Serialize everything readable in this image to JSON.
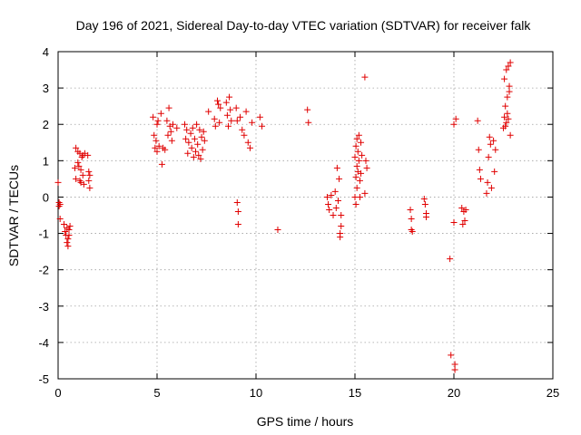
{
  "chart_data": {
    "type": "scatter",
    "title": "Day 196 of 2021, Sidereal Day-to-day VTEC variation (SDTVAR) for receiver falk",
    "xlabel": "GPS time / hours",
    "ylabel": "SDTVAR / TECUs",
    "xlim": [
      0,
      25
    ],
    "ylim": [
      -5,
      4
    ],
    "xticks": [
      "0",
      "5",
      "10",
      "15",
      "20",
      "25"
    ],
    "yticks": [
      "-5",
      "-4",
      "-3",
      "-2",
      "-1",
      "0",
      "1",
      "2",
      "3",
      "4"
    ],
    "grid": true,
    "marker": "+",
    "color": "#e00000",
    "series": [
      {
        "name": "falk",
        "points": [
          [
            0.0,
            0.4
          ],
          [
            0.05,
            -0.15
          ],
          [
            0.05,
            -0.25
          ],
          [
            0.1,
            -0.2
          ],
          [
            0.1,
            -0.6
          ],
          [
            0.3,
            -0.75
          ],
          [
            0.35,
            -0.95
          ],
          [
            0.4,
            -1.05
          ],
          [
            0.45,
            -0.85
          ],
          [
            0.45,
            -1.25
          ],
          [
            0.5,
            -1.15
          ],
          [
            0.5,
            -1.35
          ],
          [
            0.55,
            -0.9
          ],
          [
            0.55,
            -1.05
          ],
          [
            0.6,
            -0.8
          ],
          [
            0.85,
            0.8
          ],
          [
            0.9,
            1.35
          ],
          [
            0.9,
            0.5
          ],
          [
            1.0,
            1.25
          ],
          [
            1.0,
            0.95
          ],
          [
            1.05,
            0.85
          ],
          [
            1.1,
            1.2
          ],
          [
            1.1,
            0.45
          ],
          [
            1.15,
            0.75
          ],
          [
            1.15,
            0.4
          ],
          [
            1.2,
            1.1
          ],
          [
            1.25,
            1.15
          ],
          [
            1.25,
            0.6
          ],
          [
            1.3,
            0.35
          ],
          [
            1.35,
            1.2
          ],
          [
            1.5,
            1.15
          ],
          [
            1.55,
            0.7
          ],
          [
            1.55,
            0.45
          ],
          [
            1.6,
            0.6
          ],
          [
            1.6,
            0.25
          ],
          [
            4.8,
            2.2
          ],
          [
            4.85,
            1.7
          ],
          [
            4.9,
            1.35
          ],
          [
            4.95,
            1.55
          ],
          [
            5.0,
            2.0
          ],
          [
            5.0,
            1.25
          ],
          [
            5.05,
            2.1
          ],
          [
            5.1,
            1.4
          ],
          [
            5.2,
            2.3
          ],
          [
            5.25,
            0.9
          ],
          [
            5.3,
            1.35
          ],
          [
            5.4,
            1.3
          ],
          [
            5.5,
            2.1
          ],
          [
            5.55,
            1.7
          ],
          [
            5.6,
            2.45
          ],
          [
            5.65,
            1.95
          ],
          [
            5.7,
            1.8
          ],
          [
            5.75,
            1.55
          ],
          [
            5.8,
            2.0
          ],
          [
            6.0,
            1.9
          ],
          [
            6.4,
            2.0
          ],
          [
            6.45,
            1.6
          ],
          [
            6.5,
            1.85
          ],
          [
            6.55,
            1.2
          ],
          [
            6.6,
            1.5
          ],
          [
            6.7,
            1.75
          ],
          [
            6.75,
            1.35
          ],
          [
            6.8,
            1.9
          ],
          [
            6.85,
            1.1
          ],
          [
            6.9,
            1.6
          ],
          [
            6.95,
            1.25
          ],
          [
            7.0,
            2.0
          ],
          [
            7.05,
            1.45
          ],
          [
            7.1,
            1.15
          ],
          [
            7.15,
            1.85
          ],
          [
            7.2,
            1.05
          ],
          [
            7.25,
            1.65
          ],
          [
            7.3,
            1.3
          ],
          [
            7.35,
            1.8
          ],
          [
            7.4,
            1.55
          ],
          [
            7.6,
            2.35
          ],
          [
            7.9,
            2.15
          ],
          [
            7.95,
            1.95
          ],
          [
            8.05,
            2.65
          ],
          [
            8.1,
            2.55
          ],
          [
            8.15,
            2.05
          ],
          [
            8.2,
            2.45
          ],
          [
            8.5,
            2.6
          ],
          [
            8.55,
            2.25
          ],
          [
            8.6,
            1.95
          ],
          [
            8.65,
            2.75
          ],
          [
            8.7,
            2.4
          ],
          [
            8.75,
            2.1
          ],
          [
            9.0,
            2.45
          ],
          [
            9.05,
            2.1
          ],
          [
            9.05,
            -0.15
          ],
          [
            9.1,
            -0.4
          ],
          [
            9.1,
            -0.75
          ],
          [
            9.2,
            2.2
          ],
          [
            9.3,
            1.85
          ],
          [
            9.4,
            1.7
          ],
          [
            9.5,
            2.35
          ],
          [
            9.6,
            1.5
          ],
          [
            9.7,
            1.35
          ],
          [
            9.8,
            2.05
          ],
          [
            10.2,
            2.2
          ],
          [
            10.3,
            1.95
          ],
          [
            11.1,
            -0.9
          ],
          [
            12.6,
            2.4
          ],
          [
            12.65,
            2.05
          ],
          [
            13.6,
            0.0
          ],
          [
            13.65,
            -0.2
          ],
          [
            13.7,
            -0.35
          ],
          [
            13.8,
            0.05
          ],
          [
            13.9,
            -0.5
          ],
          [
            14.0,
            0.15
          ],
          [
            14.05,
            -0.3
          ],
          [
            14.1,
            0.8
          ],
          [
            14.15,
            -0.1
          ],
          [
            14.2,
            0.5
          ],
          [
            14.25,
            -1.0
          ],
          [
            14.25,
            -1.1
          ],
          [
            14.3,
            -0.5
          ],
          [
            14.3,
            -0.8
          ],
          [
            15.0,
            1.1
          ],
          [
            15.0,
            0.0
          ],
          [
            15.05,
            1.4
          ],
          [
            15.05,
            0.55
          ],
          [
            15.05,
            -0.2
          ],
          [
            15.1,
            1.6
          ],
          [
            15.1,
            0.85
          ],
          [
            15.1,
            0.25
          ],
          [
            15.15,
            1.25
          ],
          [
            15.15,
            0.7
          ],
          [
            15.2,
            1.7
          ],
          [
            15.2,
            1.0
          ],
          [
            15.25,
            0.45
          ],
          [
            15.25,
            0.0
          ],
          [
            15.3,
            1.5
          ],
          [
            15.3,
            0.65
          ],
          [
            15.35,
            1.15
          ],
          [
            15.5,
            3.3
          ],
          [
            15.5,
            0.1
          ],
          [
            15.55,
            1.0
          ],
          [
            15.6,
            0.8
          ],
          [
            17.8,
            -0.35
          ],
          [
            17.85,
            -0.6
          ],
          [
            17.85,
            -0.9
          ],
          [
            17.9,
            -0.95
          ],
          [
            18.5,
            -0.05
          ],
          [
            18.55,
            -0.2
          ],
          [
            18.6,
            -0.45
          ],
          [
            18.6,
            -0.55
          ],
          [
            19.8,
            -1.7
          ],
          [
            19.85,
            -4.35
          ],
          [
            20.0,
            2.0
          ],
          [
            20.0,
            -0.7
          ],
          [
            20.05,
            -4.6
          ],
          [
            20.05,
            -4.75
          ],
          [
            20.1,
            2.15
          ],
          [
            20.4,
            -0.3
          ],
          [
            20.45,
            -0.75
          ],
          [
            20.5,
            -0.4
          ],
          [
            20.55,
            -0.65
          ],
          [
            20.6,
            -0.35
          ],
          [
            21.2,
            2.1
          ],
          [
            21.25,
            1.3
          ],
          [
            21.3,
            0.75
          ],
          [
            21.35,
            0.5
          ],
          [
            21.65,
            0.1
          ],
          [
            21.7,
            0.4
          ],
          [
            21.75,
            1.1
          ],
          [
            21.8,
            1.65
          ],
          [
            21.85,
            1.45
          ],
          [
            21.9,
            0.25
          ],
          [
            22.0,
            1.55
          ],
          [
            22.05,
            0.7
          ],
          [
            22.1,
            1.3
          ],
          [
            22.5,
            1.9
          ],
          [
            22.55,
            2.2
          ],
          [
            22.55,
            3.25
          ],
          [
            22.6,
            2.5
          ],
          [
            22.6,
            1.95
          ],
          [
            22.65,
            3.5
          ],
          [
            22.65,
            2.05
          ],
          [
            22.7,
            2.75
          ],
          [
            22.7,
            2.3
          ],
          [
            22.75,
            3.6
          ],
          [
            22.75,
            2.15
          ],
          [
            22.8,
            2.9
          ],
          [
            22.8,
            3.05
          ],
          [
            22.85,
            3.7
          ],
          [
            22.85,
            1.7
          ]
        ]
      }
    ]
  }
}
